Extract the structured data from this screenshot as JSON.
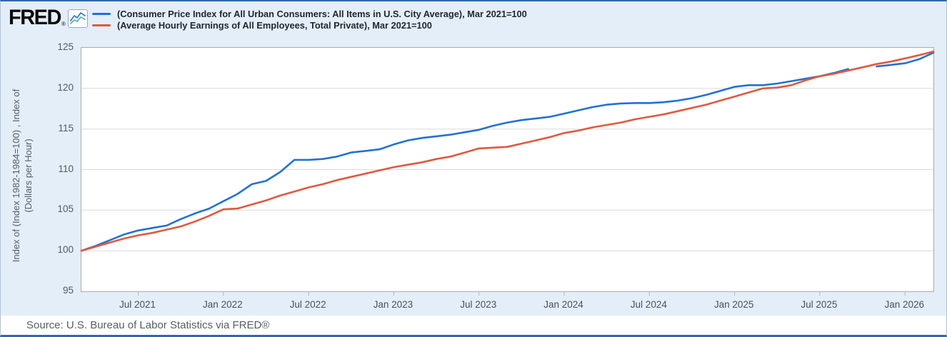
{
  "page": {
    "background": "#e4eef9",
    "frame_border_color": "#3465a8"
  },
  "header": {
    "logo_text": "FRED",
    "logo_registered": "®",
    "logo_icon": "line-chart-icon",
    "legend": [
      {
        "id": "cpi",
        "label": "(Consumer Price Index for All Urban Consumers: All Items in U.S. City Average), Mar 2021=100",
        "color": "#2272d2"
      },
      {
        "id": "ahe",
        "label": "(Average Hourly Earnings of All Employees, Total Private), Mar 2021=100",
        "color": "#e0593e"
      }
    ]
  },
  "chart_data": {
    "type": "line",
    "title": "",
    "ylabel_line1": "Index of (Index 1982-1984=100) , Index of",
    "ylabel_line2": "(Dollars per Hour)",
    "ylim": [
      95,
      125
    ],
    "yticks": [
      "95",
      "100",
      "105",
      "110",
      "115",
      "120",
      "125"
    ],
    "ytick_values": [
      95,
      100,
      105,
      110,
      115,
      120,
      125
    ],
    "grid": "horizontal-gridlines",
    "legend_position": "top",
    "x_start_month": "2021-03",
    "x_months_total": 61,
    "xticks": [
      {
        "label": "Jul 2021",
        "month_index": 4
      },
      {
        "label": "Jan 2022",
        "month_index": 10
      },
      {
        "label": "Jul 2022",
        "month_index": 16
      },
      {
        "label": "Jan 2023",
        "month_index": 22
      },
      {
        "label": "Jul 2023",
        "month_index": 28
      },
      {
        "label": "Jan 2024",
        "month_index": 34
      },
      {
        "label": "Jul 2024",
        "month_index": 40
      },
      {
        "label": "Jan 2025",
        "month_index": 46
      },
      {
        "label": "Jul 2025",
        "month_index": 52
      },
      {
        "label": "Jan 2026",
        "month_index": 58
      }
    ],
    "series": [
      {
        "id": "cpi",
        "name": "Consumer Price Index for All Urban Consumers: All Items in U.S. City Average, Mar 2021=100",
        "color": "#2272d2",
        "gap_note": "no data point for 2025-10",
        "values": [
          100.0,
          100.6,
          101.3,
          102.0,
          102.5,
          102.8,
          103.1,
          103.9,
          104.6,
          105.2,
          106.1,
          107.0,
          108.2,
          108.6,
          109.7,
          111.2,
          111.2,
          111.3,
          111.6,
          112.1,
          112.3,
          112.5,
          113.1,
          113.6,
          113.9,
          114.1,
          114.3,
          114.6,
          114.9,
          115.4,
          115.8,
          116.1,
          116.3,
          116.5,
          116.9,
          117.3,
          117.7,
          118.0,
          118.15,
          118.2,
          118.2,
          118.3,
          118.5,
          118.8,
          119.2,
          119.7,
          120.2,
          120.4,
          120.4,
          120.6,
          120.9,
          121.2,
          121.5,
          121.9,
          122.4,
          null,
          122.7,
          122.9,
          123.1,
          123.6,
          124.4
        ]
      },
      {
        "id": "ahe",
        "name": "Average Hourly Earnings of All Employees, Total Private, Mar 2021=100",
        "color": "#e0593e",
        "values": [
          100.0,
          100.5,
          101.0,
          101.5,
          101.9,
          102.2,
          102.6,
          103.0,
          103.6,
          104.3,
          105.1,
          105.2,
          105.7,
          106.2,
          106.8,
          107.3,
          107.8,
          108.2,
          108.7,
          109.1,
          109.5,
          109.9,
          110.3,
          110.6,
          110.9,
          111.3,
          111.6,
          112.1,
          112.6,
          112.7,
          112.8,
          113.2,
          113.6,
          114.0,
          114.5,
          114.8,
          115.2,
          115.5,
          115.8,
          116.2,
          116.5,
          116.8,
          117.2,
          117.6,
          118.0,
          118.5,
          119.0,
          119.5,
          120.0,
          120.1,
          120.4,
          121.0,
          121.5,
          121.8,
          122.2,
          122.6,
          123.0,
          123.3,
          123.7,
          124.1,
          124.55
        ]
      }
    ],
    "colors": {
      "gridline": "#dcdcdc",
      "plot_border": "#ababab",
      "tick_mark": "#b5b5b5"
    }
  },
  "footer": {
    "source": "Source: U.S. Bureau of Labor Statistics via FRED®"
  }
}
